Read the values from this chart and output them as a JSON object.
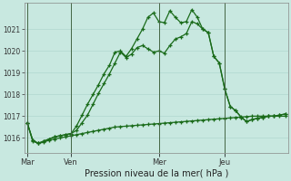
{
  "xlabel": "Pression niveau de la mer( hPa )",
  "bg_color": "#c8e8e0",
  "grid_color": "#b0d8d0",
  "line_color": "#1a6b1a",
  "ylim": [
    1015.3,
    1022.2
  ],
  "yticks": [
    1016,
    1017,
    1018,
    1019,
    1020,
    1021
  ],
  "xtick_labels": [
    "Mar",
    "Ven",
    "Mer",
    "Jeu"
  ],
  "xtick_positions": [
    0,
    8,
    24,
    36
  ],
  "vline_positions": [
    0,
    8,
    24,
    36
  ],
  "n_points": 48,
  "series1": [
    1016.7,
    1015.9,
    1015.75,
    1015.85,
    1015.95,
    1016.05,
    1016.1,
    1016.15,
    1016.2,
    1016.55,
    1017.05,
    1017.55,
    1018.0,
    1018.45,
    1018.95,
    1019.35,
    1019.95,
    1020.0,
    1019.75,
    1020.1,
    1020.55,
    1021.0,
    1021.55,
    1021.75,
    1021.35,
    1021.3,
    1021.85,
    1021.55,
    1021.3,
    1021.35,
    1021.9,
    1021.55,
    1021.0,
    1020.85,
    1019.75,
    1019.45,
    1018.25,
    1017.45,
    1017.25,
    1016.95,
    1016.75,
    1016.85,
    1016.9,
    1016.95,
    1017.0,
    1017.0,
    1017.05,
    1017.1
  ],
  "series2": [
    1016.7,
    1015.9,
    1015.75,
    1015.8,
    1015.9,
    1015.95,
    1016.0,
    1016.05,
    1016.1,
    1016.15,
    1016.2,
    1016.25,
    1016.3,
    1016.35,
    1016.4,
    1016.45,
    1016.5,
    1016.52,
    1016.54,
    1016.56,
    1016.58,
    1016.6,
    1016.62,
    1016.64,
    1016.66,
    1016.68,
    1016.7,
    1016.72,
    1016.74,
    1016.76,
    1016.78,
    1016.8,
    1016.82,
    1016.84,
    1016.86,
    1016.88,
    1016.9,
    1016.92,
    1016.94,
    1016.96,
    1016.98,
    1017.0,
    1017.0,
    1017.0,
    1017.0,
    1017.0,
    1017.0,
    1017.0
  ],
  "series3": [
    1016.7,
    1015.85,
    1015.75,
    1015.85,
    1015.95,
    1016.05,
    1016.1,
    1016.15,
    1016.2,
    1016.35,
    1016.7,
    1017.05,
    1017.55,
    1018.05,
    1018.5,
    1018.95,
    1019.45,
    1019.95,
    1019.7,
    1019.85,
    1020.15,
    1020.25,
    1020.1,
    1019.95,
    1020.0,
    1019.9,
    1020.25,
    1020.55,
    1020.65,
    1020.8,
    1021.35,
    1021.25,
    1021.0,
    1020.85,
    1019.75,
    1019.45,
    1018.25,
    1017.45,
    1017.25,
    1016.95,
    1016.75,
    1016.85,
    1016.9,
    1016.95,
    1017.0,
    1017.0,
    1017.05,
    1017.1
  ]
}
